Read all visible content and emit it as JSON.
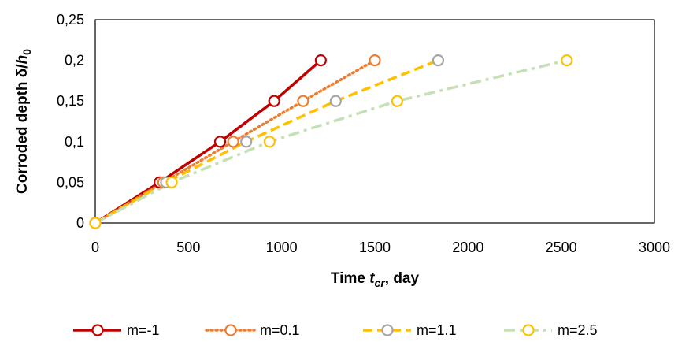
{
  "chart_data": {
    "type": "line",
    "title": "",
    "xlabel": {
      "prefix": "Time ",
      "var": "t",
      "sub": "cr",
      "suffix": ", day"
    },
    "ylabel": {
      "prefix": "Corroded depth δ/",
      "var": "h",
      "sub": "0"
    },
    "xlim": [
      0,
      3000
    ],
    "ylim": [
      0,
      0.25
    ],
    "xticks": [
      0,
      500,
      1000,
      1500,
      2000,
      2500,
      3000
    ],
    "xtick_labels": [
      "0",
      "500",
      "1000",
      "1500",
      "2000",
      "2500",
      "3000"
    ],
    "yticks": [
      0,
      0.05,
      0.1,
      0.15,
      0.2,
      0.25
    ],
    "ytick_labels": [
      "0",
      "0,05",
      "0,1",
      "0,15",
      "0,2",
      "0,25"
    ],
    "grid": false,
    "legend_position": "bottom",
    "series": [
      {
        "name": "m=-1",
        "color": "#C00000",
        "style": "solid",
        "x": [
          0,
          345,
          670,
          960,
          1210
        ],
        "y": [
          0,
          0.05,
          0.1,
          0.15,
          0.2
        ]
      },
      {
        "name": "m=0.1",
        "color": "#ED7D31",
        "style": "dotted",
        "x": [
          0,
          365,
          740,
          1115,
          1500
        ],
        "y": [
          0,
          0.05,
          0.1,
          0.15,
          0.2
        ]
      },
      {
        "name": "m=1.1",
        "color": "#A5A5A5",
        "marker_color": "#A5A5A5",
        "line_color": "#FFC000",
        "style": "dashed",
        "x": [
          0,
          380,
          810,
          1290,
          1840
        ],
        "y": [
          0,
          0.05,
          0.1,
          0.15,
          0.2
        ]
      },
      {
        "name": "m=2.5",
        "color": "#FFC000",
        "marker_color": "#FFC000",
        "line_color": "#C5E0B4",
        "style": "dashdot",
        "x": [
          0,
          410,
          935,
          1620,
          2530
        ],
        "y": [
          0,
          0.05,
          0.1,
          0.15,
          0.2
        ]
      }
    ]
  }
}
